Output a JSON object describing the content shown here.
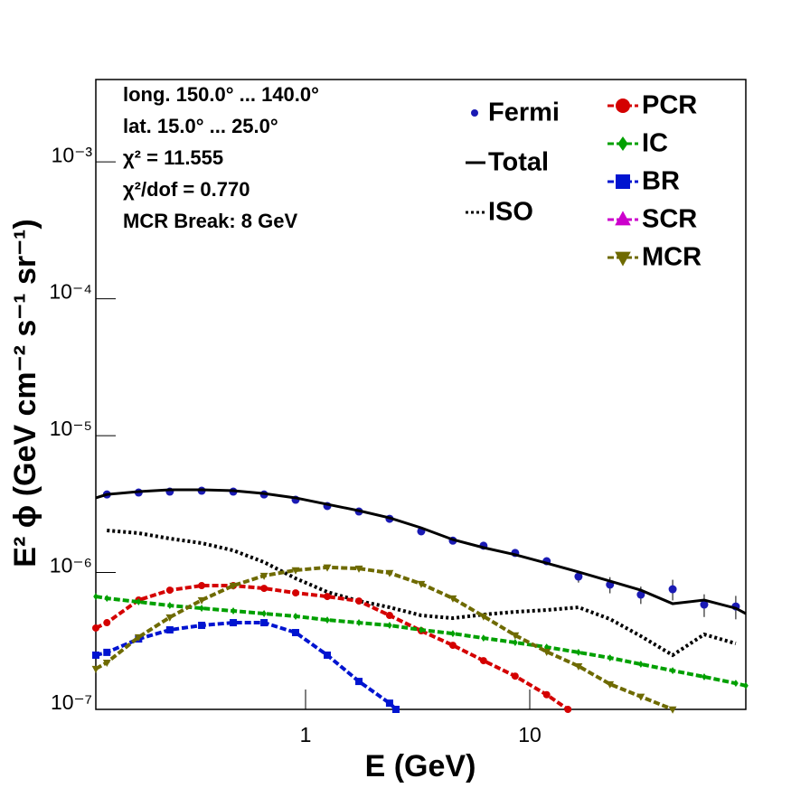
{
  "chart_data": {
    "type": "line",
    "annotations": [
      "long. 150.0° ... 140.0°",
      "lat. 15.0° ... 25.0°",
      "χ² = 11.555",
      "χ²/dof = 0.770",
      "MCR Break:  8 GeV"
    ],
    "x_label": "E (GeV)",
    "y_label": "E² ϕ (GeV cm⁻² s⁻¹ sr⁻¹)",
    "log_x": true,
    "log_y": true,
    "xlim": [
      0.116,
      92
    ],
    "ylim": [
      1e-07,
      0.004
    ],
    "xticks": [
      1,
      10
    ],
    "yticks": [
      {
        "value": 1e-07,
        "label": "10⁻⁷"
      },
      {
        "value": 1e-06,
        "label": "10⁻⁶"
      },
      {
        "value": 1e-05,
        "label": "10⁻⁵"
      },
      {
        "value": 0.0001,
        "label": "10⁻⁴"
      },
      {
        "value": 0.001,
        "label": "10⁻³"
      }
    ],
    "series": [
      {
        "name": "Fermi",
        "color": "#1a1ab4",
        "line": "none",
        "marker": "circle",
        "x": [
          0.13,
          0.18,
          0.248,
          0.344,
          0.476,
          0.653,
          0.903,
          1.25,
          1.73,
          2.37,
          3.28,
          4.54,
          6.22,
          8.61,
          11.9,
          16.5,
          22.8,
          31.3,
          43.4,
          60.0,
          83.0
        ],
        "values": [
          3.72e-06,
          3.84e-06,
          3.9e-06,
          3.96e-06,
          3.9e-06,
          3.72e-06,
          3.4e-06,
          3.06e-06,
          2.79e-06,
          2.47e-06,
          2e-06,
          1.71e-06,
          1.57e-06,
          1.39e-06,
          1.21e-06,
          9.34e-07,
          8.15e-07,
          6.89e-07,
          7.55e-07,
          5.83e-07,
          5.65e-07
        ],
        "errors": [
          1.5e-07,
          1.5e-07,
          1.5e-07,
          1.5e-07,
          1.5e-07,
          1.5e-07,
          1.4e-07,
          1.2e-07,
          1.1e-07,
          1e-07,
          8e-08,
          7e-08,
          6e-08,
          6e-08,
          7e-08,
          9e-08,
          1.1e-07,
          1e-07,
          1.3e-07,
          1.1e-07,
          1.1e-07
        ]
      },
      {
        "name": "Total",
        "color": "#000000",
        "line": "solid",
        "marker": "none",
        "x": [
          0.116,
          0.13,
          0.18,
          0.248,
          0.344,
          0.476,
          0.653,
          0.903,
          1.25,
          1.73,
          2.37,
          3.28,
          4.54,
          6.22,
          8.61,
          11.9,
          16.5,
          22.8,
          31.3,
          43.4,
          60.0,
          83.0,
          92
        ],
        "values": [
          3.51e-06,
          3.72e-06,
          3.9e-06,
          4.02e-06,
          4.02e-06,
          3.96e-06,
          3.78e-06,
          3.51e-06,
          3.15e-06,
          2.83e-06,
          2.51e-06,
          2.12e-06,
          1.74e-06,
          1.52e-06,
          1.35e-06,
          1.17e-06,
          1.01e-06,
          8.65e-07,
          7.43e-07,
          5.92e-07,
          6.29e-07,
          5.48e-07,
          5.01e-07
        ]
      },
      {
        "name": "ISO",
        "color": "#000000",
        "line": "dotted",
        "marker": "none",
        "x": [
          0.13,
          0.18,
          0.248,
          0.344,
          0.476,
          0.653,
          0.903,
          1.25,
          1.73,
          2.37,
          3.28,
          4.54,
          6.22,
          8.61,
          11.9,
          16.5,
          22.8,
          31.3,
          43.4,
          60.0,
          83.0
        ],
        "values": [
          2.03e-06,
          1.94e-06,
          1.77e-06,
          1.64e-06,
          1.45e-06,
          1.19e-06,
          9.06e-07,
          7.21e-07,
          6.19e-07,
          5.57e-07,
          4.86e-07,
          4.64e-07,
          4.93e-07,
          5.16e-07,
          5.32e-07,
          5.57e-07,
          4.57e-07,
          3.43e-07,
          2.49e-07,
          3.53e-07,
          3.03e-07
        ]
      },
      {
        "name": "PCR",
        "color": "#d40000",
        "line": "dashed",
        "marker": "circle",
        "x": [
          0.116,
          0.13,
          0.18,
          0.248,
          0.344,
          0.476,
          0.653,
          0.903,
          1.25,
          1.73,
          2.37,
          3.28,
          4.54,
          6.22,
          8.61,
          11.9,
          14.8
        ],
        "values": [
          3.93e-07,
          4.3e-07,
          6.29e-07,
          7.43e-07,
          8.02e-07,
          8.02e-07,
          7.66e-07,
          7.1e-07,
          6.68e-07,
          6.19e-07,
          4.86e-07,
          3.75e-07,
          2.94e-07,
          2.27e-07,
          1.75e-07,
          1.28e-07,
          1e-07
        ]
      },
      {
        "name": "IC",
        "color": "#00a000",
        "line": "dashed",
        "marker": "diamond",
        "x": [
          0.116,
          0.13,
          0.18,
          0.248,
          0.344,
          0.476,
          0.653,
          0.903,
          1.25,
          1.73,
          2.37,
          3.28,
          4.54,
          6.22,
          8.61,
          11.9,
          16.5,
          22.8,
          31.3,
          43.4,
          60.0,
          83.0,
          92
        ],
        "values": [
          6.68e-07,
          6.48e-07,
          6.1e-07,
          5.74e-07,
          5.48e-07,
          5.24e-07,
          5.01e-07,
          4.79e-07,
          4.5e-07,
          4.3e-07,
          4.11e-07,
          3.81e-07,
          3.58e-07,
          3.32e-07,
          3.08e-07,
          2.85e-07,
          2.61e-07,
          2.38e-07,
          2.14e-07,
          1.92e-07,
          1.73e-07,
          1.55e-07,
          1.49e-07
        ]
      },
      {
        "name": "BR",
        "color": "#0014d0",
        "line": "dashed",
        "marker": "square",
        "x": [
          0.116,
          0.13,
          0.18,
          0.248,
          0.344,
          0.476,
          0.653,
          0.903,
          1.25,
          1.73,
          2.37,
          2.53
        ],
        "values": [
          2.49e-07,
          2.61e-07,
          3.27e-07,
          3.81e-07,
          4.11e-07,
          4.3e-07,
          4.3e-07,
          3.64e-07,
          2.49e-07,
          1.6e-07,
          1.11e-07,
          1e-07
        ]
      },
      {
        "name": "SCR",
        "color": "#cc00cc",
        "line": "dashed",
        "marker": "triangle-up",
        "x": [],
        "values": []
      },
      {
        "name": "MCR",
        "color": "#6e6a00",
        "line": "dashed",
        "marker": "triangle-down",
        "x": [
          0.116,
          0.13,
          0.18,
          0.248,
          0.344,
          0.476,
          0.653,
          0.903,
          1.25,
          1.73,
          2.37,
          3.28,
          4.54,
          6.22,
          8.61,
          11.9,
          16.5,
          22.8,
          31.3,
          43.4
        ],
        "values": [
          1.98e-07,
          2.2e-07,
          3.37e-07,
          4.71e-07,
          6.29e-07,
          8.02e-07,
          9.48e-07,
          1.04e-06,
          1.09e-06,
          1.07e-06,
          9.93e-07,
          8.27e-07,
          6.48e-07,
          4.79e-07,
          3.48e-07,
          2.64e-07,
          2.07e-07,
          1.53e-07,
          1.24e-07,
          1e-07
        ]
      }
    ]
  }
}
